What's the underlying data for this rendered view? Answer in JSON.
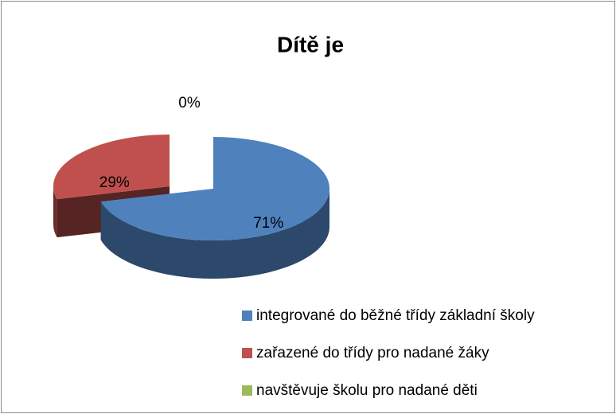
{
  "chart_data": {
    "type": "pie",
    "title": "Dítě je",
    "categories": [
      "integrované do běžné třídy základní školy",
      "zařazené do třídy pro nadané žáky",
      "navštěvuje školu pro nadané děti"
    ],
    "values": [
      71,
      29,
      0
    ],
    "value_labels": [
      "71%",
      "29%",
      "0%"
    ],
    "colors": [
      "#4f81bd",
      "#c0504d",
      "#9bbb59"
    ],
    "legend": "bottom-right"
  }
}
